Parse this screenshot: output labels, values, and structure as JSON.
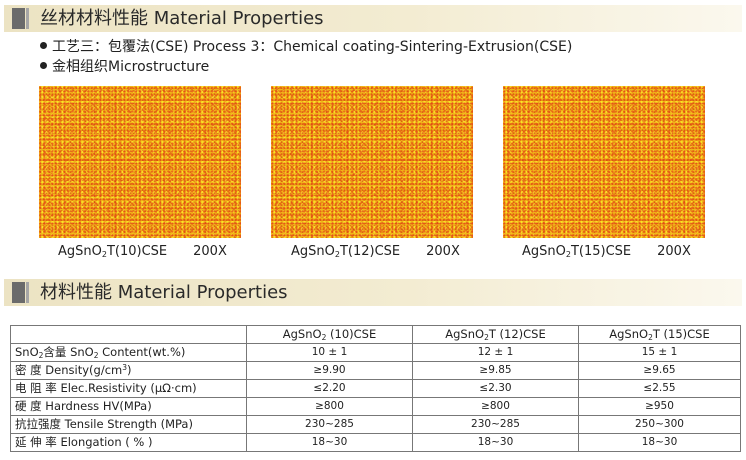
{
  "section1": {
    "title": "丝材材料性能 Material Properties"
  },
  "process_line": "工艺三：包覆法(CSE)   Process 3：Chemical coating-Sintering-Extrusion(CSE)",
  "microstructure_line": "金相组织Microstructure",
  "micrographs": [
    {
      "base": "AgSnO",
      "sub": "2",
      "rest": "T(10)CSE",
      "magnification": "200X"
    },
    {
      "base": "AgSnO",
      "sub": "2",
      "rest": "T(12)CSE",
      "magnification": "200X"
    },
    {
      "base": "AgSnO",
      "sub": "2",
      "rest": "T(15)CSE",
      "magnification": "200X"
    }
  ],
  "section2": {
    "title": "材料性能 Material Properties"
  },
  "table": {
    "headers": [
      {
        "base": "",
        "sub": "",
        "rest": ""
      },
      {
        "base": "AgSnO",
        "sub": "2",
        "rest": " (10)CSE"
      },
      {
        "base": "AgSnO",
        "sub": "2",
        "rest": "T (12)CSE"
      },
      {
        "base": "AgSnO",
        "sub": "2",
        "rest": "T (15)CSE"
      }
    ],
    "rows": [
      {
        "n1": "SnO",
        "n1sub": "2",
        "n2": "含量 SnO",
        "n2sub": "2",
        "n3": " Content(wt.%)",
        "n3sup": "",
        "n4": "",
        "values": [
          "10 ± 1",
          "12 ± 1",
          "15 ± 1"
        ]
      },
      {
        "n1": "密      度 Density(g/cm",
        "n1sub": "",
        "n2": "",
        "n2sub": "",
        "n3": "",
        "n3sup": "3",
        "n4": ")",
        "values": [
          "≥9.90",
          "≥9.85",
          "≥9.65"
        ]
      },
      {
        "n1": "电  阻  率 Elec.Resistivity (μΩ·cm)",
        "n1sub": "",
        "n2": "",
        "n2sub": "",
        "n3": "",
        "n3sup": "",
        "n4": "",
        "values": [
          "≤2.20",
          "≤2.30",
          "≤2.55"
        ]
      },
      {
        "n1": "硬      度 Hardness HV(MPa)",
        "n1sub": "",
        "n2": "",
        "n2sub": "",
        "n3": "",
        "n3sup": "",
        "n4": "",
        "values": [
          "≥800",
          "≥800",
          "≥950"
        ]
      },
      {
        "n1": "抗拉强度 Tensile Strength (MPa)",
        "n1sub": "",
        "n2": "",
        "n2sub": "",
        "n3": "",
        "n3sup": "",
        "n4": "",
        "values": [
          "230~285",
          "230~285",
          "250~300"
        ]
      },
      {
        "n1": "延  伸  率 Elongation ( % )",
        "n1sub": "",
        "n2": "",
        "n2sub": "",
        "n3": "",
        "n3sup": "",
        "n4": "",
        "values": [
          "18~30",
          "18~30",
          "18~30"
        ]
      }
    ]
  }
}
